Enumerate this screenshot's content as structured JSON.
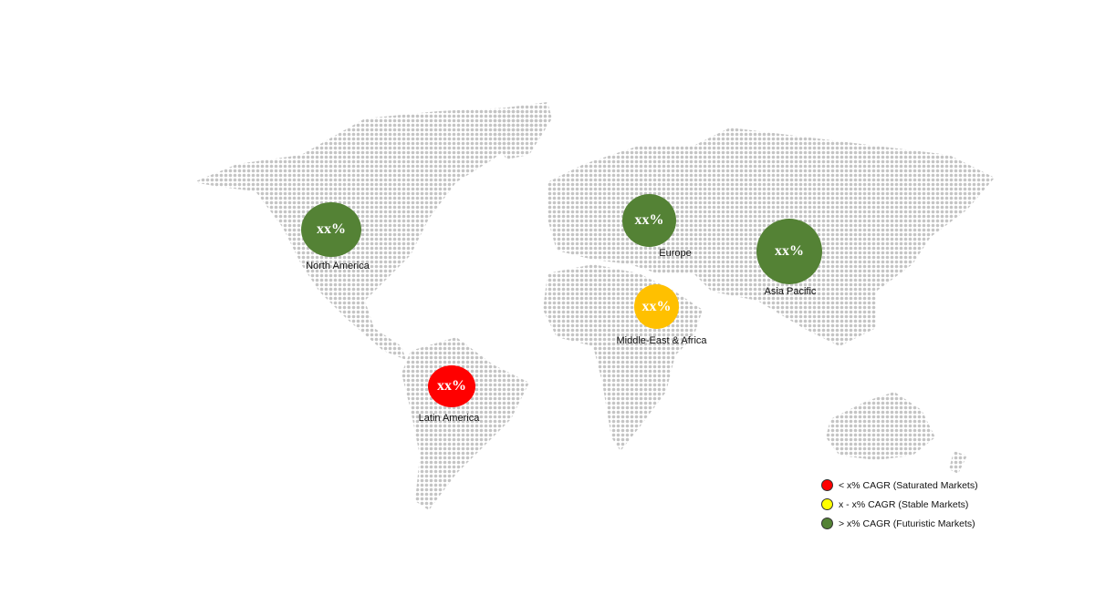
{
  "regions": [
    {
      "name": "North America",
      "value": "xx%",
      "color": "#548235"
    },
    {
      "name": "Europe",
      "value": "xx%",
      "color": "#548235"
    },
    {
      "name": "Asia Pacific",
      "value": "xx%",
      "color": "#548235"
    },
    {
      "name": "Middle-East & Africa",
      "value": "xx%",
      "color": "#FFC000"
    },
    {
      "name": "Latin America",
      "value": "xx%",
      "color": "#FF0000"
    }
  ],
  "legend": [
    {
      "label": "< x% CAGR (Saturated Markets)",
      "color": "#FF0000"
    },
    {
      "label": "x - x% CAGR (Stable Markets)",
      "color": "#FFFF00"
    },
    {
      "label": "> x% CAGR (Futuristic Markets)",
      "color": "#548235"
    }
  ],
  "map_color": "#c4c4c4"
}
